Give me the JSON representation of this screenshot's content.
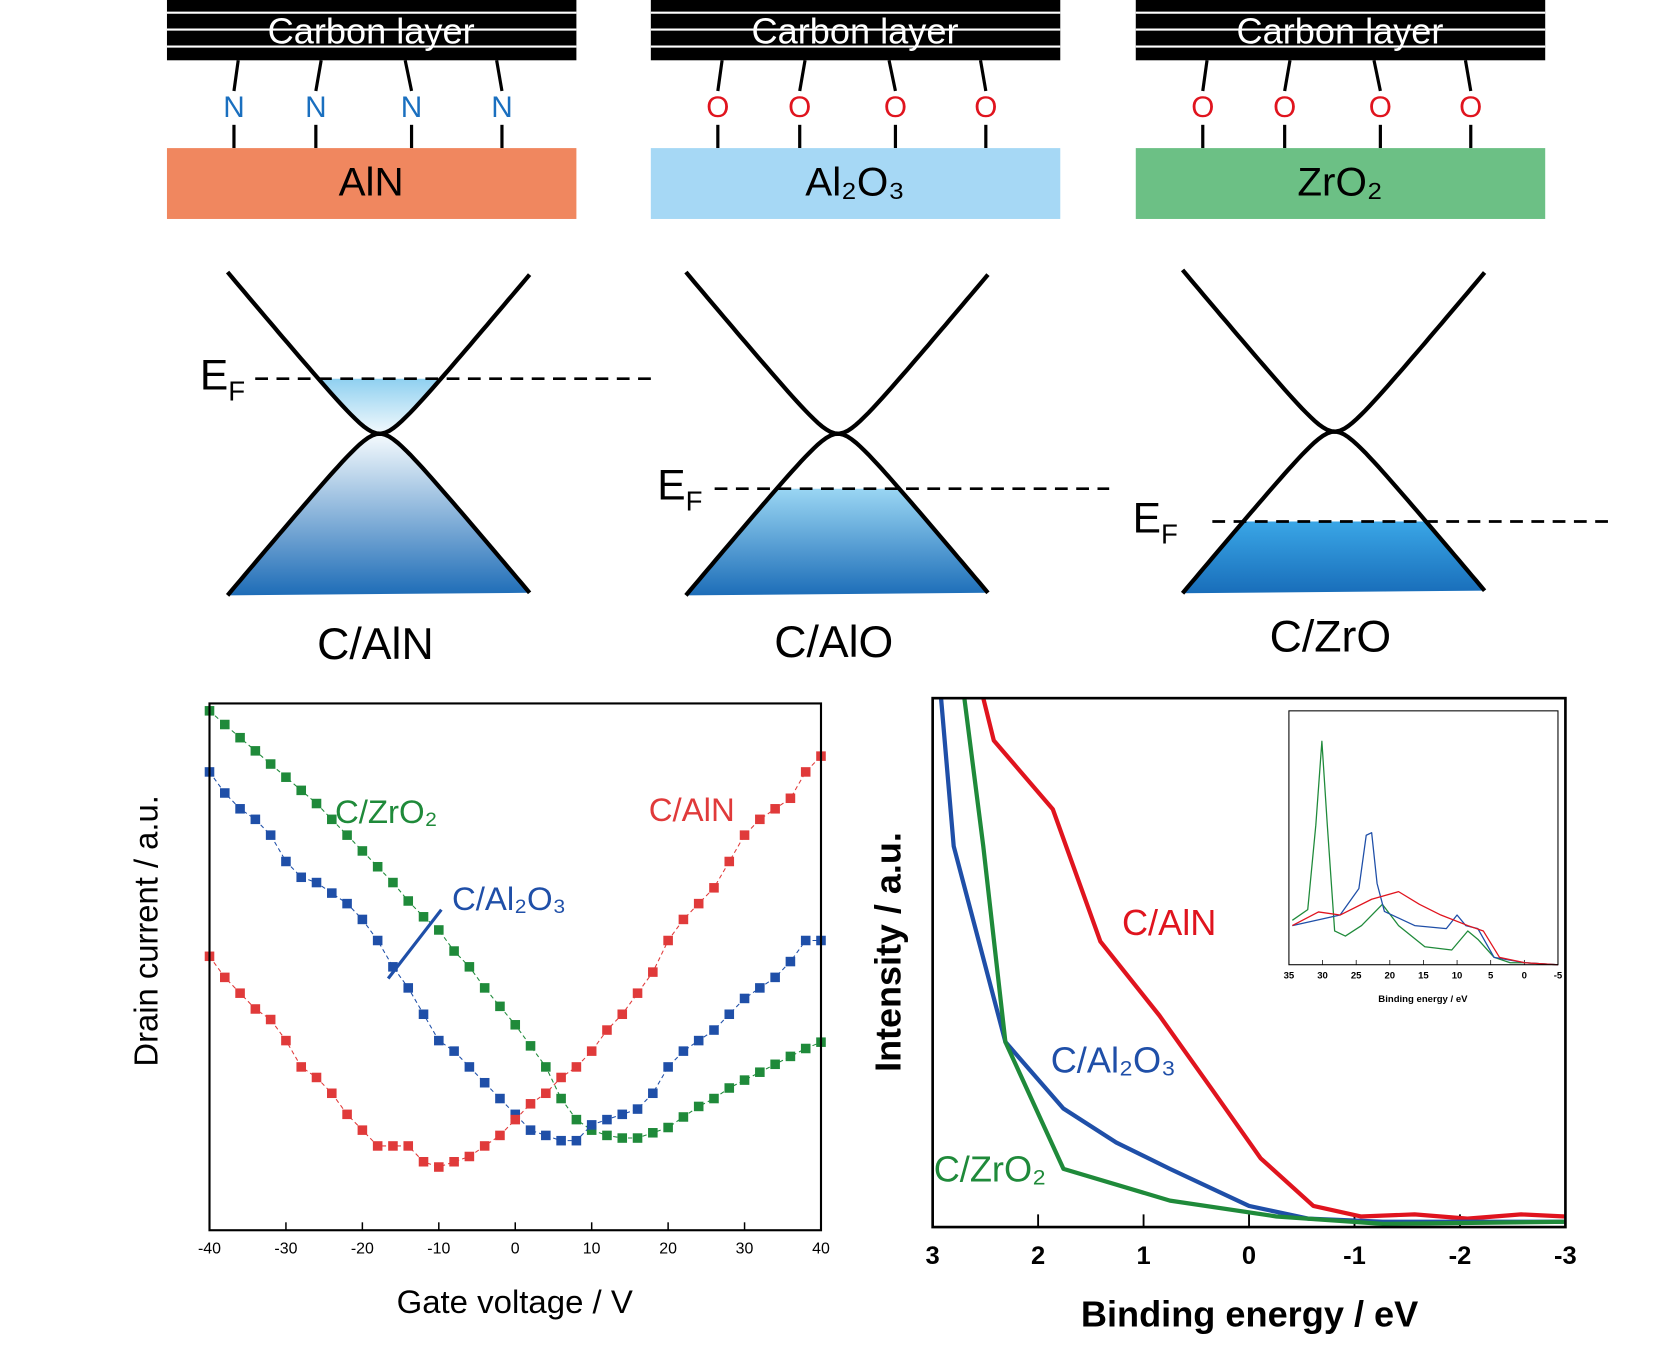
{
  "panels": [
    {
      "layer": "Carbon layer",
      "linker": "N",
      "linker_color": "#1a6fbf",
      "substrate": "AlN",
      "substrate_color": "#f0875f",
      "fermi": {
        "main": "E",
        "sub": "F"
      },
      "label": "C/AlN"
    },
    {
      "layer": "Carbon layer",
      "linker": "O",
      "linker_color": "#e0141e",
      "substrate": "Al₂O₃",
      "substrate_color": "#a6d8f5",
      "fermi": {
        "main": "E",
        "sub": "F"
      },
      "label": "C/AlO"
    },
    {
      "layer": "Carbon layer",
      "linker": "O",
      "linker_color": "#e0141e",
      "substrate": "ZrO₂",
      "substrate_color": "#6cc085",
      "fermi": {
        "main": "E",
        "sub": "F"
      },
      "label": "C/ZrO"
    }
  ],
  "chart_data": [
    {
      "type": "line",
      "marker": "square",
      "x_label": "Gate voltage / V",
      "y_label": "Drain current / a.u.",
      "x": [
        -40,
        -38,
        -36,
        -34,
        -32,
        -30,
        -28,
        -26,
        -24,
        -22,
        -20,
        -18,
        -16,
        -14,
        -12,
        -10,
        -8,
        -6,
        -4,
        -2,
        0,
        2,
        4,
        6,
        8,
        10,
        12,
        14,
        16,
        18,
        20,
        22,
        24,
        26,
        28,
        30,
        32,
        34,
        36,
        38,
        40
      ],
      "xlim": [
        -40,
        40
      ],
      "xticks": [
        -40,
        -30,
        -20,
        -10,
        0,
        10,
        20,
        30,
        40
      ],
      "ylim": [
        0,
        100
      ],
      "series": [
        {
          "name": "C/ZrO₂",
          "color": "#1f8a3a",
          "values": [
            98.6,
            96,
            93.5,
            91,
            88.5,
            86,
            83.5,
            81,
            78,
            75,
            72,
            69,
            66,
            62.5,
            59.5,
            57,
            53,
            50,
            46,
            42.5,
            39,
            35,
            31,
            25,
            21,
            19,
            18,
            17.5,
            17.5,
            18.5,
            19.5,
            21.5,
            23.5,
            25,
            27,
            28.5,
            30,
            31.5,
            33,
            34.5,
            35.7
          ]
        },
        {
          "name": "C/Al₂O₃",
          "color": "#1f4fa8",
          "values": [
            87,
            83,
            80,
            78,
            75,
            70,
            67,
            66,
            64,
            62,
            59,
            55,
            50,
            46,
            41,
            36,
            34,
            31,
            28,
            25,
            22,
            19,
            18,
            17,
            17,
            20,
            21,
            22,
            23,
            26,
            31,
            34,
            36,
            38,
            41,
            44,
            46,
            48,
            51,
            55,
            55
          ]
        },
        {
          "name": "C/AlN",
          "color": "#e03a3a",
          "values": [
            52,
            48,
            45,
            42,
            40,
            36,
            31,
            29,
            26,
            22,
            19,
            16,
            16,
            16,
            13,
            12,
            13,
            14,
            16,
            18,
            21,
            24,
            26,
            29,
            31,
            34,
            38,
            41,
            45,
            49,
            55,
            59,
            62,
            65,
            70,
            75,
            78,
            80,
            82,
            87,
            90
          ]
        }
      ]
    },
    {
      "type": "line",
      "x_label": "Binding energy / eV",
      "y_label": "Intensity / a.u.",
      "xlim": [
        3,
        -3
      ],
      "xticks": [
        3,
        2,
        1,
        0,
        -1,
        -2,
        -3
      ],
      "ylim": [
        0,
        100
      ],
      "series": [
        {
          "name": "C/AlN",
          "color": "#e0141e",
          "x": [
            2.52,
            2.42,
            1.86,
            1.41,
            0.85,
            0.35,
            -0.11,
            -0.61,
            -1.06,
            -1.57,
            -2.07,
            -2.58,
            -3
          ],
          "values": [
            100,
            92,
            79,
            54,
            40,
            26,
            13,
            4,
            2,
            2.4,
            1.6,
            2.4,
            2
          ]
        },
        {
          "name": "C/Al₂O₃",
          "color": "#1f4fa8",
          "x": [
            2.92,
            2.8,
            2.31,
            1.76,
            1.26,
            0.75,
            0,
            -0.56,
            -1.27,
            -3
          ],
          "values": [
            100,
            72,
            35,
            22.4,
            16,
            11,
            4,
            1.6,
            1,
            1
          ]
        },
        {
          "name": "C/ZrO₂",
          "color": "#1f8a3a",
          "x": [
            2.7,
            2.52,
            2.31,
            1.76,
            0.75,
            -0.26,
            -1.27,
            -3
          ],
          "values": [
            100,
            72,
            35,
            11,
            5,
            2,
            0.6,
            1
          ]
        }
      ]
    },
    {
      "type": "line",
      "x_label": "Binding energy / eV",
      "xlim": [
        35,
        -5
      ],
      "xticks": [
        35,
        30,
        25,
        20,
        15,
        10,
        5,
        0,
        -5
      ],
      "ylim": [
        0,
        100
      ],
      "series": [
        {
          "color": "#1f8a3a",
          "x": [
            34.5,
            32.2,
            31,
            30.1,
            29.3,
            28.2,
            26.6,
            24.2,
            21.1,
            18.7,
            14.8,
            10.8,
            8.4,
            6.9,
            4.5,
            2.1,
            -0.1,
            -5
          ],
          "values": [
            17.5,
            21.7,
            55,
            88,
            55,
            13.3,
            11.3,
            15.4,
            23.8,
            15.4,
            7.1,
            5.8,
            13.3,
            10,
            2.9,
            0.8,
            0.8,
            0
          ]
        },
        {
          "color": "#1f4fa8",
          "x": [
            34.5,
            27.4,
            24.6,
            23.5,
            22.7,
            21.9,
            20.8,
            16.3,
            11.6,
            10,
            8.7,
            6.9,
            4.5,
            -0.1,
            -5
          ],
          "values": [
            15.4,
            19.6,
            30,
            51,
            52,
            32,
            21,
            15.4,
            14.2,
            19.6,
            15.4,
            14.2,
            2.9,
            0.8,
            0
          ]
        },
        {
          "color": "#e0141e",
          "x": [
            34.5,
            30.6,
            27.4,
            22.7,
            18.7,
            15.6,
            12.4,
            8.4,
            6.1,
            3.7,
            -0.1,
            -5
          ],
          "values": [
            15.4,
            20.8,
            19.6,
            25.8,
            28.8,
            23.8,
            19.6,
            15.4,
            13.3,
            2.9,
            0.8,
            0
          ]
        }
      ]
    }
  ]
}
